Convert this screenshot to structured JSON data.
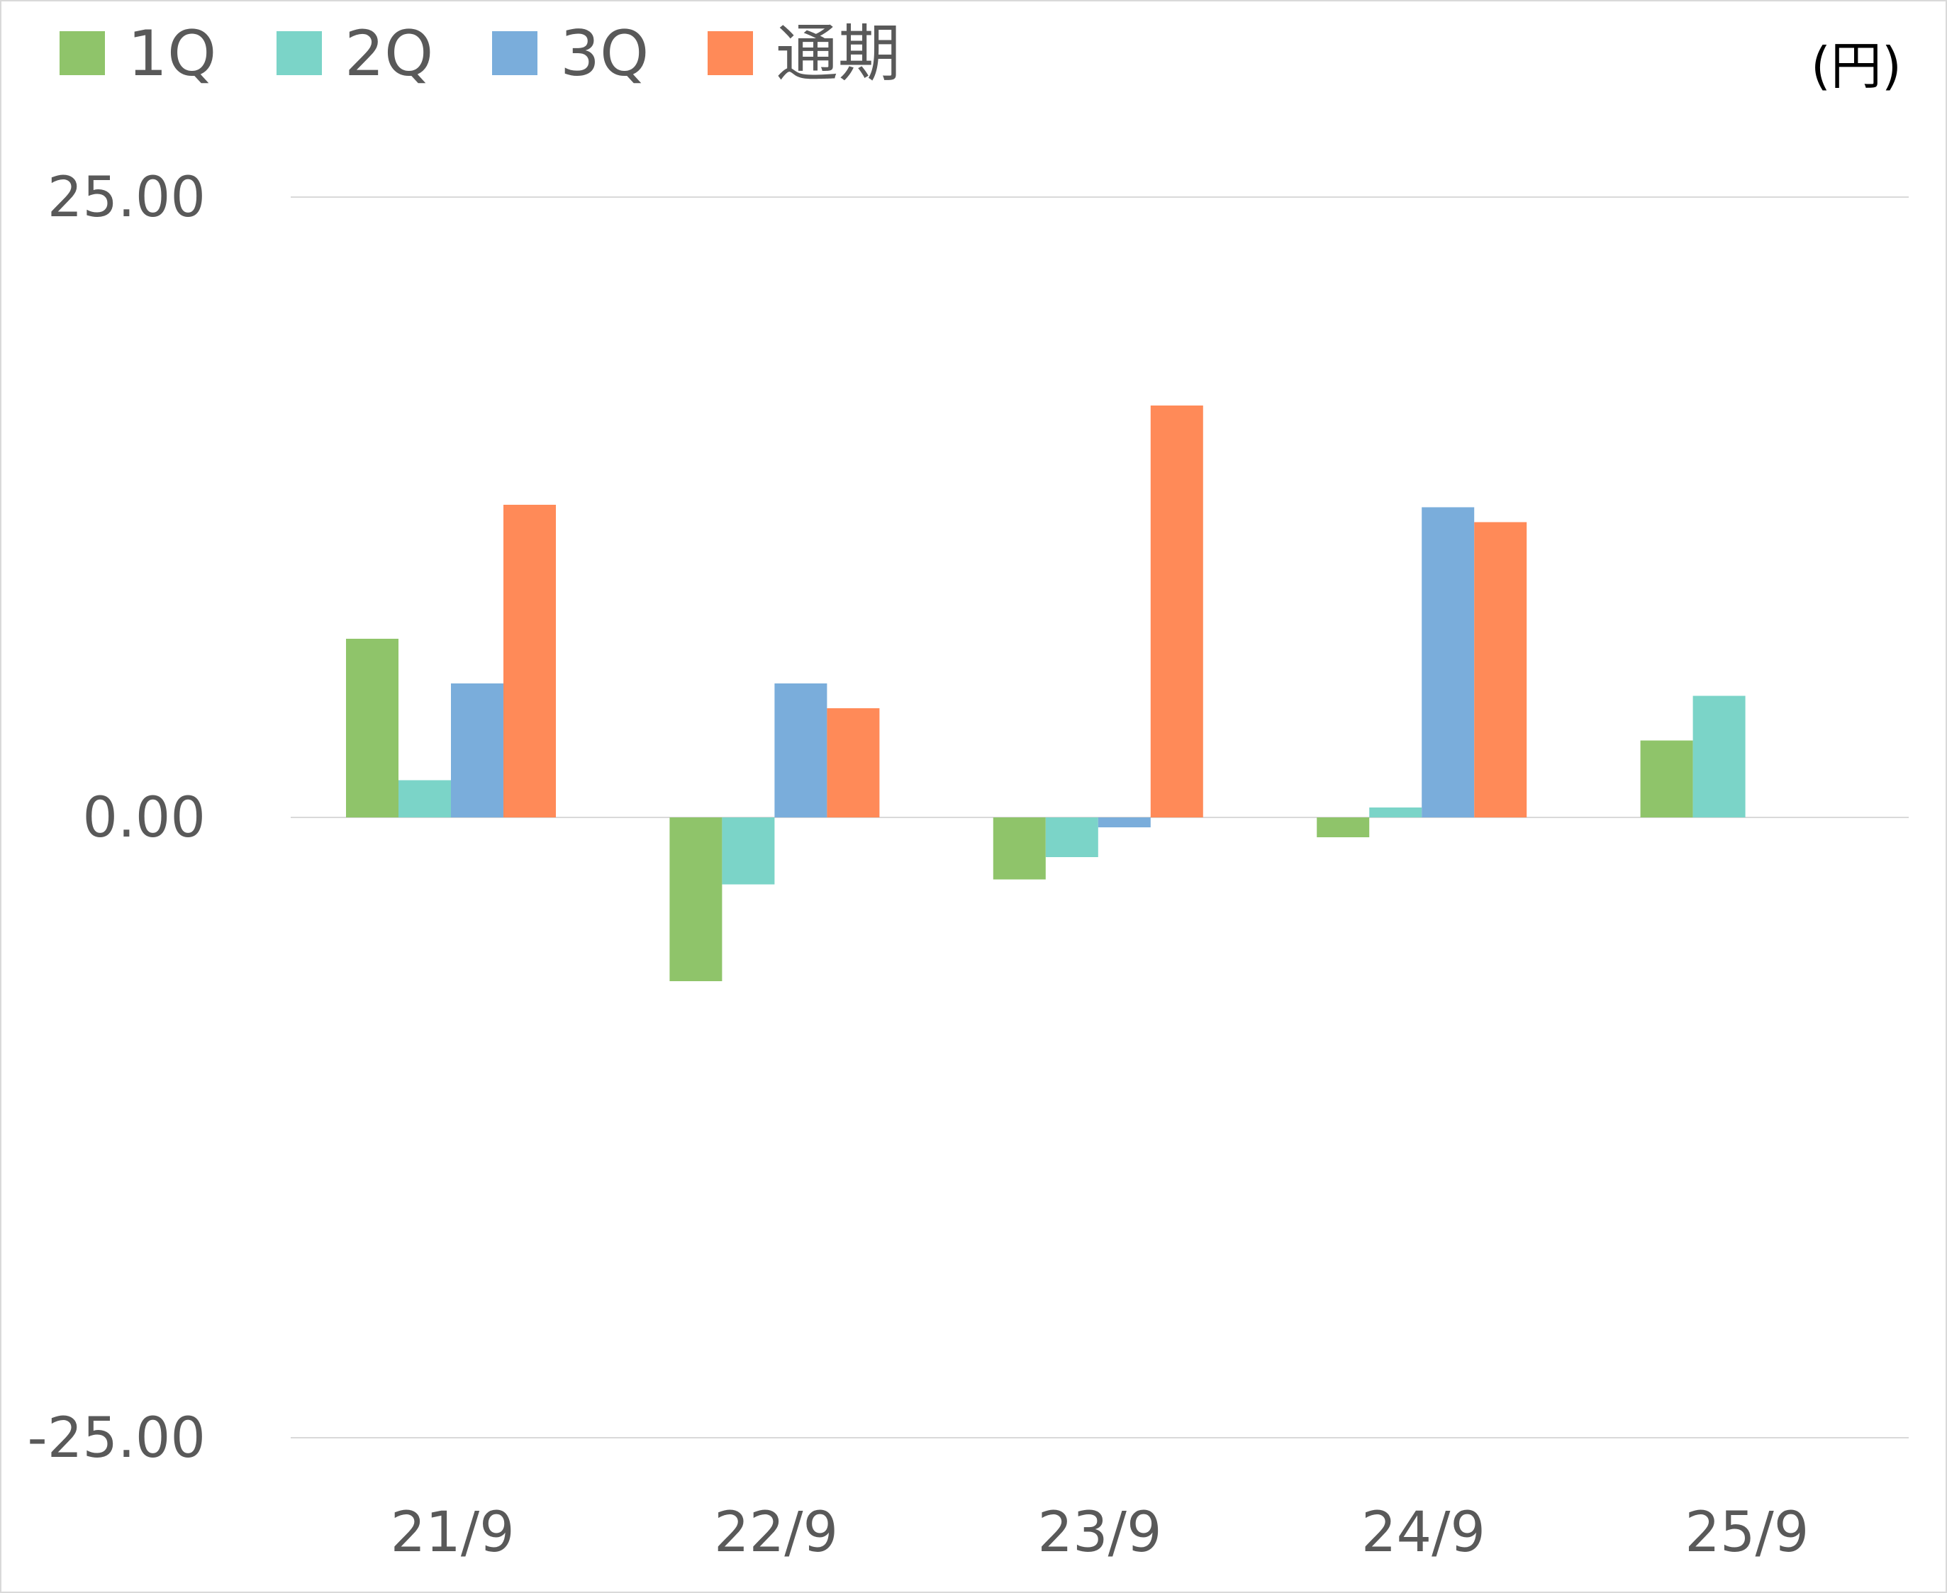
{
  "chart_data": {
    "type": "bar",
    "unit_label": "(円)",
    "categories": [
      "21/9",
      "22/9",
      "23/9",
      "24/9",
      "25/9"
    ],
    "series": [
      {
        "name": "1Q",
        "color": "#8fc46a",
        "values": [
          7.2,
          -6.6,
          -2.5,
          -0.8,
          3.1
        ]
      },
      {
        "name": "2Q",
        "color": "#7bd4c8",
        "values": [
          1.5,
          -2.7,
          -1.6,
          0.4,
          4.9
        ]
      },
      {
        "name": "3Q",
        "color": "#7aaddb",
        "values": [
          5.4,
          5.4,
          -0.4,
          12.5,
          null
        ]
      },
      {
        "name": "通期",
        "color": "#ff8a58",
        "values": [
          12.6,
          4.4,
          16.6,
          11.9,
          null
        ]
      }
    ],
    "y_ticks": [
      "25.00",
      "0.00",
      "-25.00"
    ],
    "ylim": [
      -25,
      25
    ],
    "grid": true,
    "legend_position": "top-left",
    "text_color": "#595959",
    "grid_color": "#d9d9d9"
  }
}
